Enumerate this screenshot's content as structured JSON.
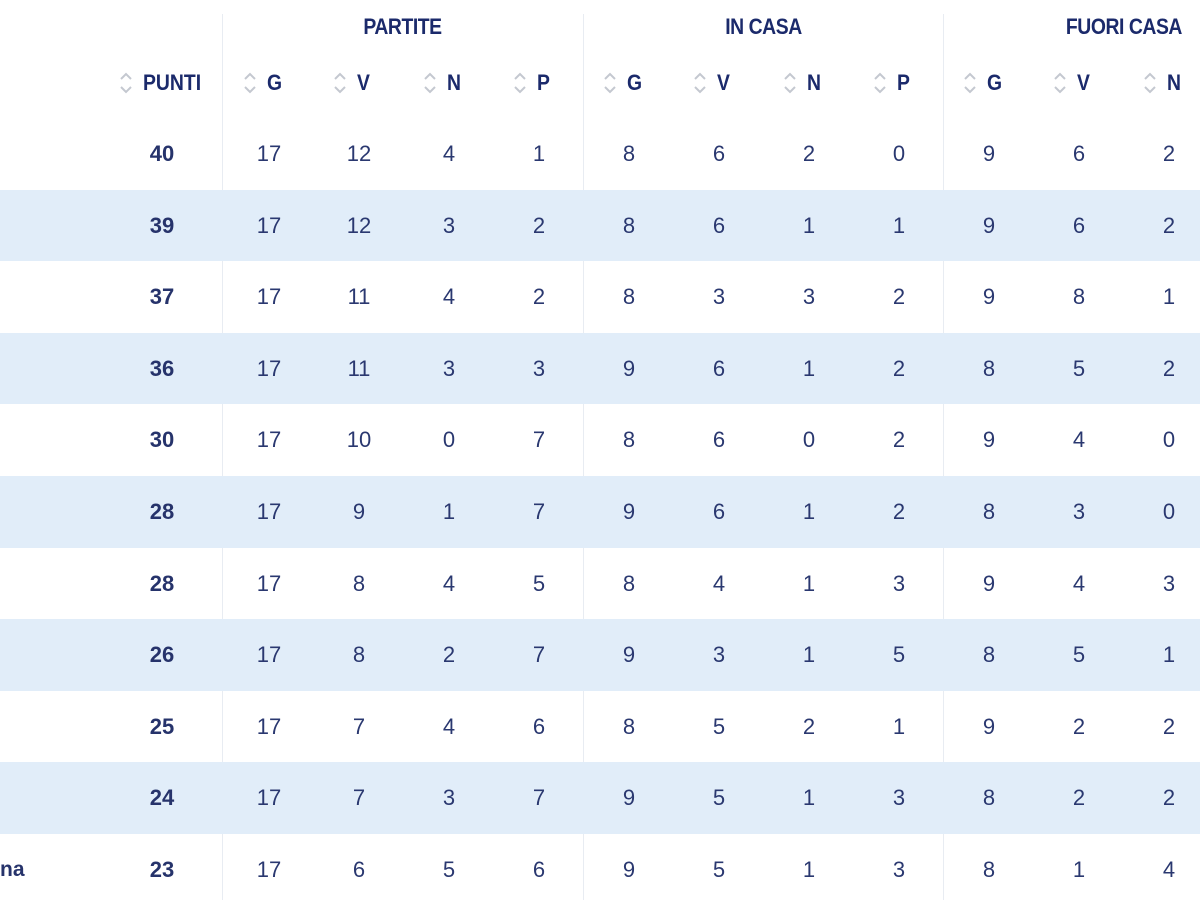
{
  "table": {
    "groups": [
      {
        "key": "partite",
        "label": "PARTITE"
      },
      {
        "key": "in_casa",
        "label": "IN CASA"
      },
      {
        "key": "fuori_casa",
        "label": "FUORI CASA"
      }
    ],
    "columns": {
      "punti": "PUNTI",
      "g": "G",
      "v": "V",
      "n": "N",
      "p": "P"
    },
    "sort_icon": "sort-updown-icon",
    "rows": [
      {
        "team": "",
        "punti": "40",
        "partite": [
          "17",
          "12",
          "4",
          "1"
        ],
        "in_casa": [
          "8",
          "6",
          "2",
          "0"
        ],
        "fuori_casa": [
          "9",
          "6",
          "2"
        ]
      },
      {
        "team": "",
        "punti": "39",
        "partite": [
          "17",
          "12",
          "3",
          "2"
        ],
        "in_casa": [
          "8",
          "6",
          "1",
          "1"
        ],
        "fuori_casa": [
          "9",
          "6",
          "2"
        ]
      },
      {
        "team": "",
        "punti": "37",
        "partite": [
          "17",
          "11",
          "4",
          "2"
        ],
        "in_casa": [
          "8",
          "3",
          "3",
          "2"
        ],
        "fuori_casa": [
          "9",
          "8",
          "1"
        ]
      },
      {
        "team": "",
        "punti": "36",
        "partite": [
          "17",
          "11",
          "3",
          "3"
        ],
        "in_casa": [
          "9",
          "6",
          "1",
          "2"
        ],
        "fuori_casa": [
          "8",
          "5",
          "2"
        ]
      },
      {
        "team": "",
        "punti": "30",
        "partite": [
          "17",
          "10",
          "0",
          "7"
        ],
        "in_casa": [
          "8",
          "6",
          "0",
          "2"
        ],
        "fuori_casa": [
          "9",
          "4",
          "0"
        ]
      },
      {
        "team": "",
        "punti": "28",
        "partite": [
          "17",
          "9",
          "1",
          "7"
        ],
        "in_casa": [
          "9",
          "6",
          "1",
          "2"
        ],
        "fuori_casa": [
          "8",
          "3",
          "0"
        ]
      },
      {
        "team": "",
        "punti": "28",
        "partite": [
          "17",
          "8",
          "4",
          "5"
        ],
        "in_casa": [
          "8",
          "4",
          "1",
          "3"
        ],
        "fuori_casa": [
          "9",
          "4",
          "3"
        ]
      },
      {
        "team": "",
        "punti": "26",
        "partite": [
          "17",
          "8",
          "2",
          "7"
        ],
        "in_casa": [
          "9",
          "3",
          "1",
          "5"
        ],
        "fuori_casa": [
          "8",
          "5",
          "1"
        ]
      },
      {
        "team": "",
        "punti": "25",
        "partite": [
          "17",
          "7",
          "4",
          "6"
        ],
        "in_casa": [
          "8",
          "5",
          "2",
          "1"
        ],
        "fuori_casa": [
          "9",
          "2",
          "2"
        ]
      },
      {
        "team": "",
        "punti": "24",
        "partite": [
          "17",
          "7",
          "3",
          "7"
        ],
        "in_casa": [
          "9",
          "5",
          "1",
          "3"
        ],
        "fuori_casa": [
          "8",
          "2",
          "2"
        ]
      },
      {
        "team": "na",
        "punti": "23",
        "partite": [
          "17",
          "6",
          "5",
          "6"
        ],
        "in_casa": [
          "9",
          "5",
          "1",
          "3"
        ],
        "fuori_casa": [
          "8",
          "1",
          "4"
        ]
      }
    ]
  },
  "colors": {
    "header_text": "#1b2a6b",
    "cell_text": "#2a3870",
    "stripe": "#e1edf9",
    "separator": "#e8ecf2",
    "sort_icon": "#c4c8d0"
  }
}
